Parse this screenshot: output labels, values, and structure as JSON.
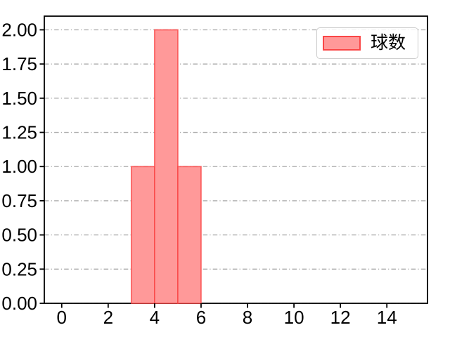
{
  "chart_data": {
    "type": "bar",
    "subtype": "histogram",
    "title": "",
    "xlabel": "",
    "ylabel": "",
    "series": [
      {
        "name": "球数",
        "bins": [
          {
            "x0": 3,
            "x1": 4,
            "count": 1
          },
          {
            "x0": 4,
            "x1": 5,
            "count": 2
          },
          {
            "x0": 5,
            "x1": 6,
            "count": 1
          }
        ]
      }
    ],
    "xlim": [
      -0.75,
      15.75
    ],
    "ylim": [
      0,
      2.1
    ],
    "x_ticks": [
      "0",
      "2",
      "4",
      "6",
      "8",
      "10",
      "12",
      "14"
    ],
    "y_ticks": [
      "0.00",
      "0.25",
      "0.50",
      "0.75",
      "1.00",
      "1.25",
      "1.50",
      "1.75",
      "2.00"
    ],
    "grid": {
      "axis": "y",
      "linestyle": "dash-dot",
      "on": true
    },
    "legend": {
      "label": "球数",
      "position": "upper right"
    },
    "colors": {
      "bar_fill": "#ff9999",
      "bar_edge": "#fa4646",
      "grid": "#aaaaaa",
      "spine": "#000000",
      "tick_label": "#000000",
      "background": "#ffffff",
      "legend_border": "#cccccc"
    }
  }
}
